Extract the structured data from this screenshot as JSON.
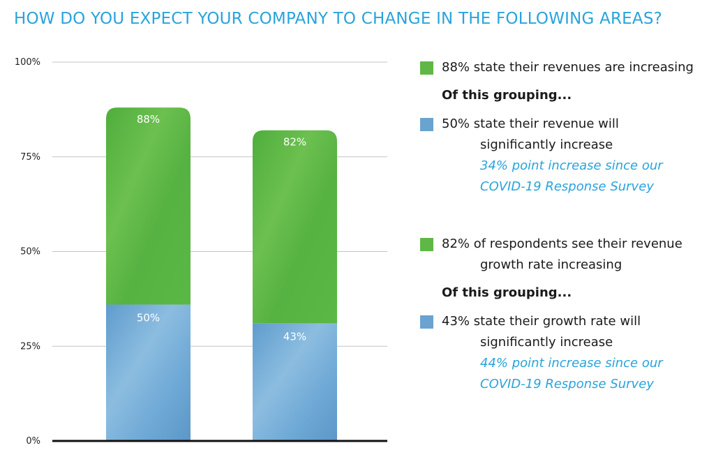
{
  "chart_data": {
    "type": "bar",
    "stacked": true,
    "title": "HOW DO YOU EXPECT YOUR COMPANY TO CHANGE IN THE FOLLOWING AREAS?",
    "ylim": [
      0,
      100
    ],
    "y_ticks": [
      "100%",
      "75%",
      "50%",
      "25%",
      "0%"
    ],
    "grid": true,
    "bars": [
      {
        "total": 88,
        "total_label": "88%",
        "significant": 50,
        "significant_label": "50%",
        "significant_height": 36
      },
      {
        "total": 82,
        "total_label": "82%",
        "significant": 43,
        "significant_label": "43%",
        "significant_height": 31
      }
    ],
    "colors": {
      "total": "#5fb845",
      "significant": "#6aa3cf",
      "title": "#29a3dc",
      "note": "#29a3dc"
    }
  },
  "legend": {
    "group1": {
      "total_text": "88% state their revenues are increasing",
      "heading": "Of this grouping...",
      "sig_line1": "50% state their revenue will",
      "sig_line2": "significantly increase",
      "note_line1": "34% point increase since our",
      "note_line2": "COVID-19 Response Survey"
    },
    "group2": {
      "total_line1": "82% of respondents see their revenue",
      "total_line2": "growth rate increasing",
      "heading": "Of this grouping...",
      "sig_line1": "43% state their growth rate will",
      "sig_line2": "significantly increase",
      "note_line1": "44% point increase since our",
      "note_line2": "COVID-19 Response Survey"
    }
  }
}
